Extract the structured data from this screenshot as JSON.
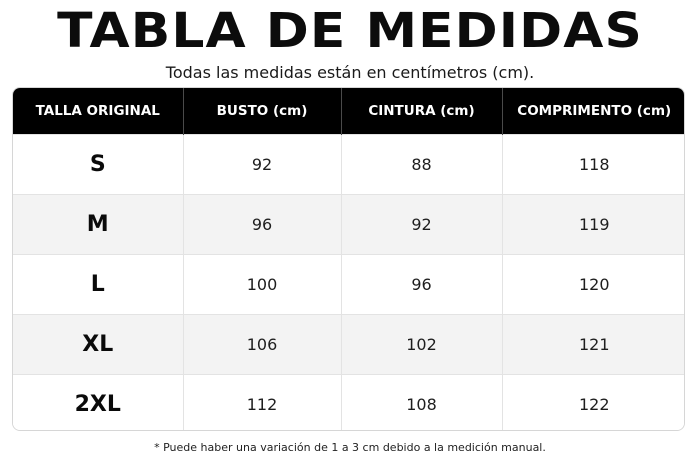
{
  "title": "TABLA DE MEDIDAS",
  "subtitle": "Todas las medidas están en centímetros (cm).",
  "table": {
    "headers": [
      "TALLA ORIGINAL",
      "BUSTO (cm)",
      "CINTURA (cm)",
      "COMPRIMENTO (cm)"
    ],
    "rows": [
      [
        "S",
        "92",
        "88",
        "118"
      ],
      [
        "M",
        "96",
        "92",
        "119"
      ],
      [
        "L",
        "100",
        "96",
        "120"
      ],
      [
        "XL",
        "106",
        "102",
        "121"
      ],
      [
        "2XL",
        "112",
        "108",
        "122"
      ]
    ]
  },
  "footnote": "* Puede haber una variación de 1 a 3 cm debido a la medición manual.",
  "colors": {
    "header_background": "#000000",
    "header_text": "#ffffff",
    "stripe_background": "#f3f3f3"
  }
}
